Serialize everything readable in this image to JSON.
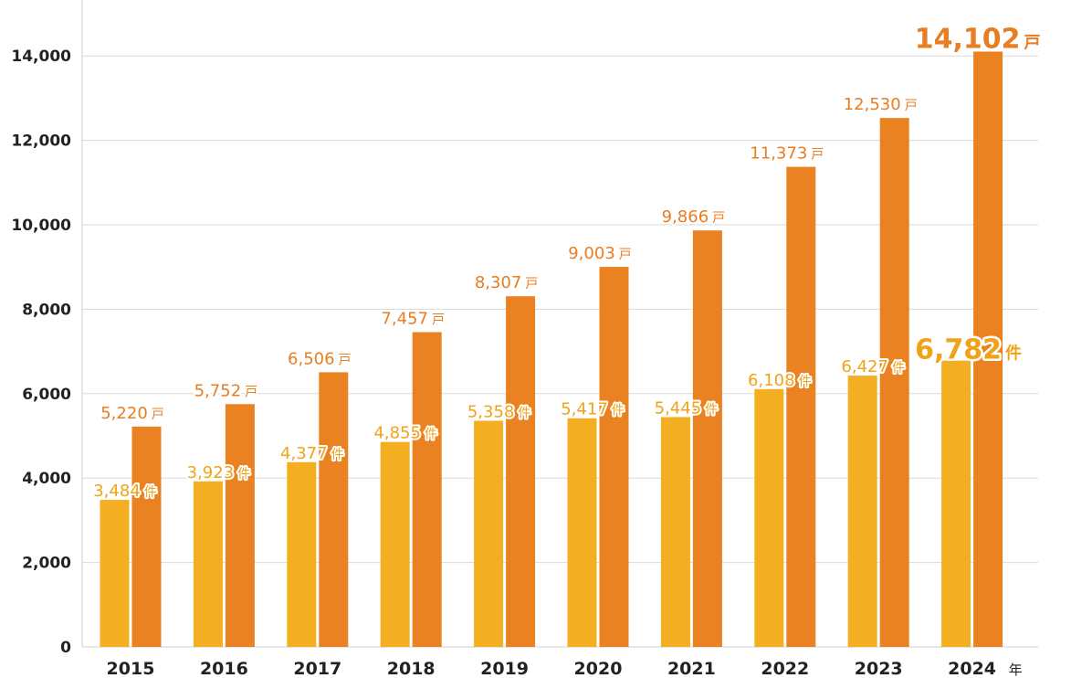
{
  "chart_data": {
    "type": "bar",
    "categories": [
      "2015",
      "2016",
      "2017",
      "2018",
      "2019",
      "2020",
      "2021",
      "2022",
      "2023",
      "2024"
    ],
    "x_unit": "年",
    "series": [
      {
        "unit": "件",
        "color": "#f4ae22",
        "values": [
          3484,
          3923,
          4377,
          4855,
          5358,
          5417,
          5445,
          6108,
          6427,
          6782
        ],
        "labels": [
          "3,484",
          "3,923",
          "4,377",
          "4,855",
          "5,358",
          "5,417",
          "5,445",
          "6,108",
          "6,427",
          "6,782"
        ]
      },
      {
        "unit": "戸",
        "color": "#ea8222",
        "values": [
          5220,
          5752,
          6506,
          7457,
          8307,
          9003,
          9866,
          11373,
          12530,
          14102
        ],
        "labels": [
          "5,220",
          "5,752",
          "6,506",
          "7,457",
          "8,307",
          "9,003",
          "9,866",
          "11,373",
          "12,530",
          "14,102"
        ]
      }
    ],
    "yticks": [
      0,
      2000,
      4000,
      6000,
      8000,
      10000,
      12000,
      14000
    ],
    "ytick_labels": [
      "0",
      "2,000",
      "4,000",
      "6,000",
      "8,000",
      "10,000",
      "12,000",
      "14,000"
    ],
    "ylim": [
      0,
      15000
    ],
    "grid": true,
    "highlight_last": true,
    "label_colors": {
      "series1": "#f0a318",
      "series2": "#e87d22"
    }
  }
}
